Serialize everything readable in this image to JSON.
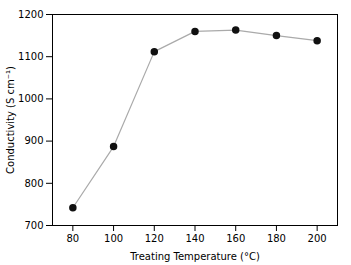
{
  "chart_data": {
    "type": "line",
    "x": [
      80,
      100,
      120,
      140,
      160,
      180,
      200
    ],
    "values": [
      742,
      887,
      1112,
      1160,
      1163,
      1150,
      1138
    ],
    "xlabel": "Treating Temperature (°C)",
    "ylabel": "Conductivity (S cm⁻¹)",
    "xlim": [
      70,
      210
    ],
    "ylim": [
      700,
      1200
    ],
    "xticks": [
      80,
      100,
      120,
      140,
      160,
      180,
      200
    ],
    "yticks": [
      700,
      800,
      900,
      1000,
      1100,
      1200
    ],
    "color": "#aaaaaa",
    "marker": "circle"
  }
}
